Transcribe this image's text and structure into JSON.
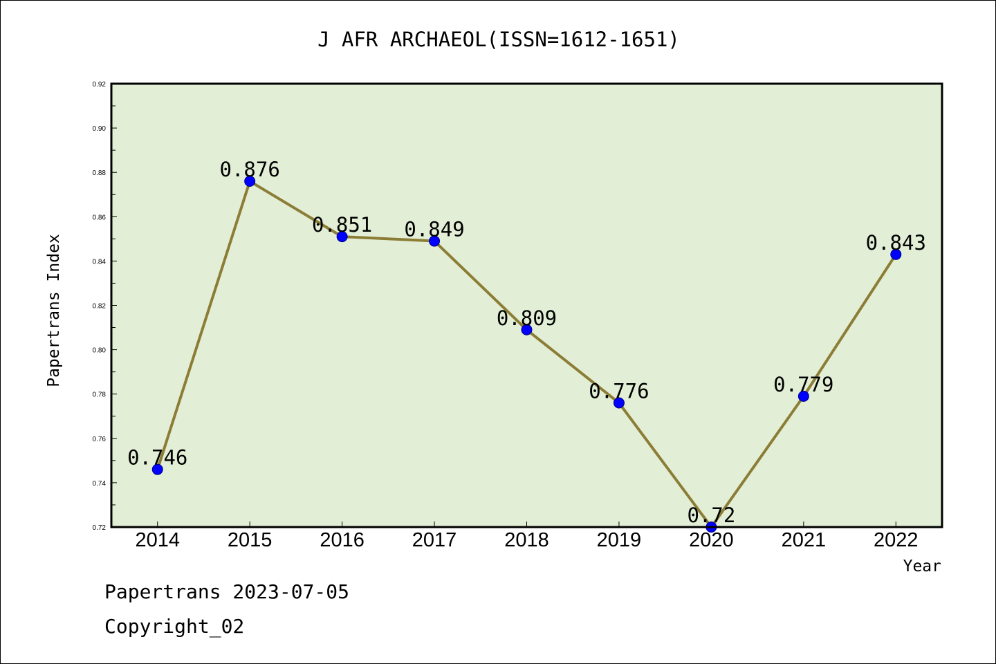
{
  "chart_data": {
    "type": "line",
    "title": "J AFR ARCHAEOL(ISSN=1612-1651)",
    "xlabel": "Year",
    "ylabel": "Papertrans Index",
    "categories": [
      "2014",
      "2015",
      "2016",
      "2017",
      "2018",
      "2019",
      "2020",
      "2021",
      "2022"
    ],
    "values": [
      0.746,
      0.876,
      0.851,
      0.849,
      0.809,
      0.776,
      0.72,
      0.779,
      0.843
    ],
    "data_labels": [
      "0.746",
      "0.876",
      "0.851",
      "0.849",
      "0.809",
      "0.776",
      "0.72",
      "0.779",
      "0.843"
    ],
    "ylim": [
      0.72,
      0.92
    ],
    "yticks": [
      "0.72",
      "0.74",
      "0.76",
      "0.78",
      "0.80",
      "0.82",
      "0.84",
      "0.86",
      "0.88",
      "0.90",
      "0.92"
    ],
    "grid": false,
    "legend": "none",
    "colors": {
      "plot_background": "#e2efd6",
      "line": "#8c7d36",
      "marker": "#0000ff",
      "frame": "#000000"
    }
  },
  "footer": {
    "line1": "Papertrans 2023-07-05",
    "line2": "Copyright_02"
  }
}
